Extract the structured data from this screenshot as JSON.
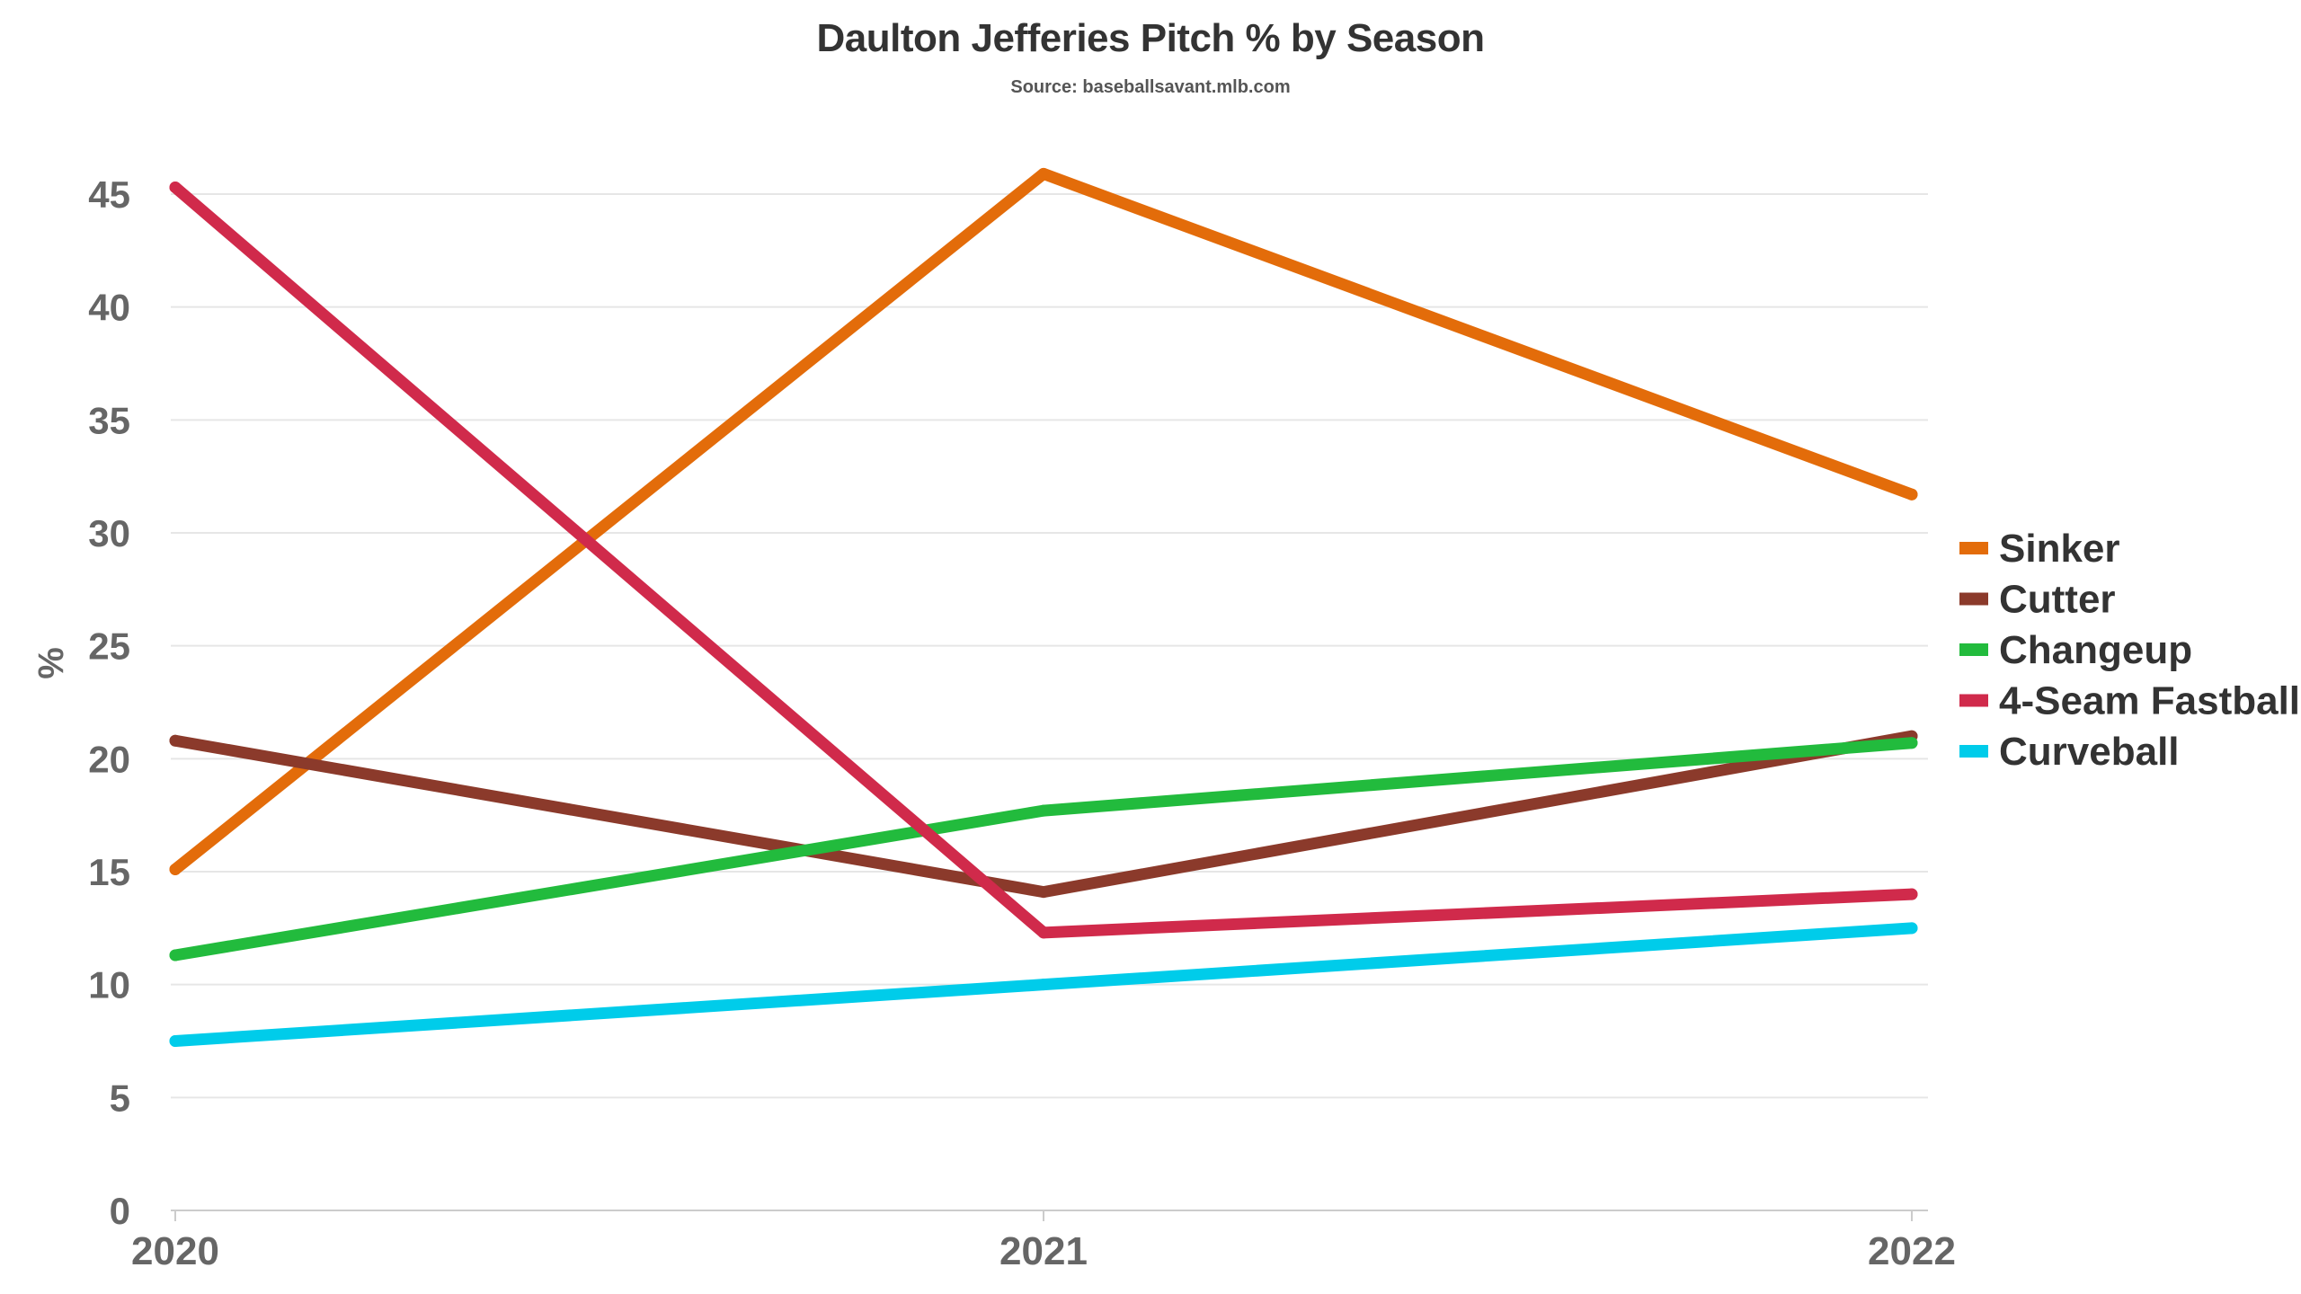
{
  "chart_data": {
    "type": "line",
    "title": "Daulton Jefferies Pitch % by Season",
    "subtitle": "Source: baseballsavant.mlb.com",
    "xlabel": "",
    "ylabel": "%",
    "x": [
      "2020",
      "2021",
      "2022"
    ],
    "ylim": [
      0,
      45
    ],
    "yticks": [
      "0",
      "5",
      "10",
      "15",
      "20",
      "25",
      "30",
      "35",
      "40",
      "45"
    ],
    "grid": true,
    "legend_position": "right",
    "series": [
      {
        "name": "Sinker",
        "color": "#e36c0a",
        "values": [
          15.1,
          45.9,
          31.7
        ]
      },
      {
        "name": "Cutter",
        "color": "#8b3a2b",
        "values": [
          20.8,
          14.1,
          21.0
        ]
      },
      {
        "name": "Changeup",
        "color": "#22bb3d",
        "values": [
          11.3,
          17.7,
          20.7
        ]
      },
      {
        "name": "4-Seam Fastball",
        "color": "#d02a4b",
        "values": [
          45.3,
          12.3,
          14.0
        ]
      },
      {
        "name": "Curveball",
        "color": "#00ccea",
        "values": [
          7.5,
          10.0,
          12.5
        ]
      }
    ]
  }
}
